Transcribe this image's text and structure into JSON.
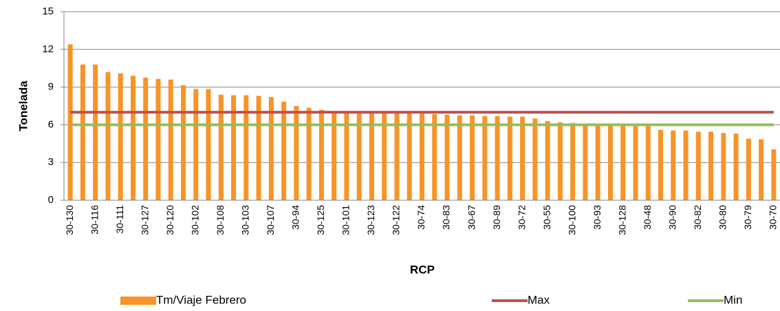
{
  "chart_data": {
    "type": "bar",
    "y_label": "Tonelada",
    "x_label": "RCP",
    "categories": [
      "30-130",
      null,
      "30-116",
      null,
      "30-111",
      null,
      "30-127",
      null,
      "30-120",
      null,
      "30-102",
      null,
      "30-108",
      null,
      "30-103",
      null,
      "30-107",
      null,
      "30-94",
      null,
      "30-125",
      null,
      "30-101",
      null,
      "30-123",
      null,
      "30-122",
      null,
      "30-74",
      null,
      "30-83",
      null,
      "30-67",
      null,
      "30-89",
      null,
      "30-72",
      null,
      "30-55",
      null,
      "30-100",
      null,
      "30-93",
      null,
      "30-128",
      null,
      "30-48",
      null,
      "30-90",
      null,
      "30-82",
      null,
      "30-80",
      null,
      "30-79",
      null,
      "30-70"
    ],
    "series": [
      {
        "name": "Tm/Viaje Febrero",
        "type": "bar",
        "color": "#f79428",
        "values": [
          12.4,
          10.8,
          10.8,
          10.2,
          10.1,
          9.9,
          9.75,
          9.65,
          9.6,
          9.15,
          8.85,
          8.85,
          8.4,
          8.35,
          8.35,
          8.3,
          8.2,
          7.85,
          7.5,
          7.35,
          7.2,
          7.1,
          7.0,
          7.0,
          6.95,
          6.95,
          6.9,
          6.9,
          6.9,
          6.85,
          6.8,
          6.75,
          6.75,
          6.7,
          6.7,
          6.65,
          6.65,
          6.5,
          6.3,
          6.2,
          6.15,
          6.0,
          6.0,
          6.0,
          5.95,
          5.9,
          5.9,
          5.6,
          5.55,
          5.55,
          5.45,
          5.45,
          5.35,
          5.3,
          4.9,
          4.85,
          4.05
        ]
      },
      {
        "name": "Max",
        "type": "line",
        "color": "#c0504d",
        "values": [
          7,
          7,
          7,
          7,
          7,
          7,
          7,
          7,
          7,
          7,
          7,
          7,
          7,
          7,
          7,
          7,
          7,
          7,
          7,
          7,
          7,
          7,
          7,
          7,
          7,
          7,
          7,
          7,
          7,
          7,
          7,
          7,
          7,
          7,
          7,
          7,
          7,
          7,
          7,
          7,
          7,
          7,
          7,
          7,
          7,
          7,
          7,
          7,
          7,
          7,
          7,
          7,
          7,
          7,
          7,
          7,
          7
        ]
      },
      {
        "name": "Min",
        "type": "line",
        "color": "#9bbb59",
        "values": [
          6,
          6,
          6,
          6,
          6,
          6,
          6,
          6,
          6,
          6,
          6,
          6,
          6,
          6,
          6,
          6,
          6,
          6,
          6,
          6,
          6,
          6,
          6,
          6,
          6,
          6,
          6,
          6,
          6,
          6,
          6,
          6,
          6,
          6,
          6,
          6,
          6,
          6,
          6,
          6,
          6,
          6,
          6,
          6,
          6,
          6,
          6,
          6,
          6,
          6,
          6,
          6,
          6,
          6,
          6,
          6,
          6
        ]
      }
    ],
    "ylim": [
      0,
      15
    ],
    "yticks": [
      0,
      3,
      6,
      9,
      12,
      15
    ],
    "grid": true,
    "legend": "bottom"
  }
}
